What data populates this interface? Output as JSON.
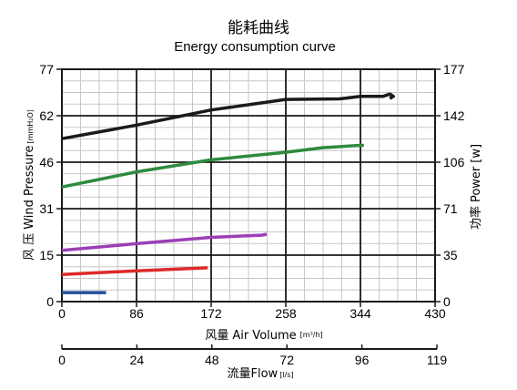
{
  "chart_data": {
    "type": "line",
    "title": "能耗曲线",
    "subtitle": "Energy consumption curve",
    "xlabel_cn": "风量",
    "xlabel": "Air Volume",
    "xunit": "[m³/h]",
    "ylabel_cn": "风 压",
    "ylabel": "Wind Pressure",
    "yunit": "[mmH₂O]",
    "y2label_cn": "功率",
    "y2label": "Power",
    "y2unit": "[w]",
    "x2label_cn": "流量",
    "x2label": "Flow",
    "x2unit": "[l/s]",
    "xlim": [
      0,
      430
    ],
    "ylim": [
      0,
      77
    ],
    "y2lim": [
      0,
      177
    ],
    "x2lim": [
      0,
      119
    ],
    "xticks": [
      "0",
      "86",
      "172",
      "258",
      "344",
      "430"
    ],
    "yticks": [
      "0",
      "15",
      "31",
      "46",
      "62",
      "77"
    ],
    "y2ticks": [
      "0",
      "35",
      "71",
      "106",
      "142",
      "177"
    ],
    "x2ticks": [
      "0",
      "24",
      "48",
      "72",
      "96",
      "119"
    ],
    "grid": true,
    "series": [
      {
        "color": "#1a1a1a",
        "x": [
          0,
          86,
          172,
          258,
          320,
          344,
          370,
          378,
          382,
          379,
          381
        ],
        "y": [
          54,
          58.5,
          63.5,
          67,
          67.2,
          68,
          68,
          68.8,
          68,
          67.6,
          67.4
        ]
      },
      {
        "color": "#2e8b3e",
        "x": [
          0,
          86,
          172,
          258,
          300,
          344,
          348
        ],
        "y": [
          38,
          43,
          47,
          49.5,
          51,
          51.8,
          51.8
        ]
      },
      {
        "color": "#9b3fb5",
        "x": [
          0,
          86,
          172,
          230,
          236
        ],
        "y": [
          17,
          19.2,
          21.3,
          22,
          22.3
        ]
      },
      {
        "color": "#dd2a2a",
        "x": [
          0,
          86,
          168
        ],
        "y": [
          9,
          10.2,
          11.2
        ]
      },
      {
        "color": "#234f9c",
        "x": [
          0,
          51
        ],
        "y": [
          3,
          3
        ]
      }
    ]
  }
}
